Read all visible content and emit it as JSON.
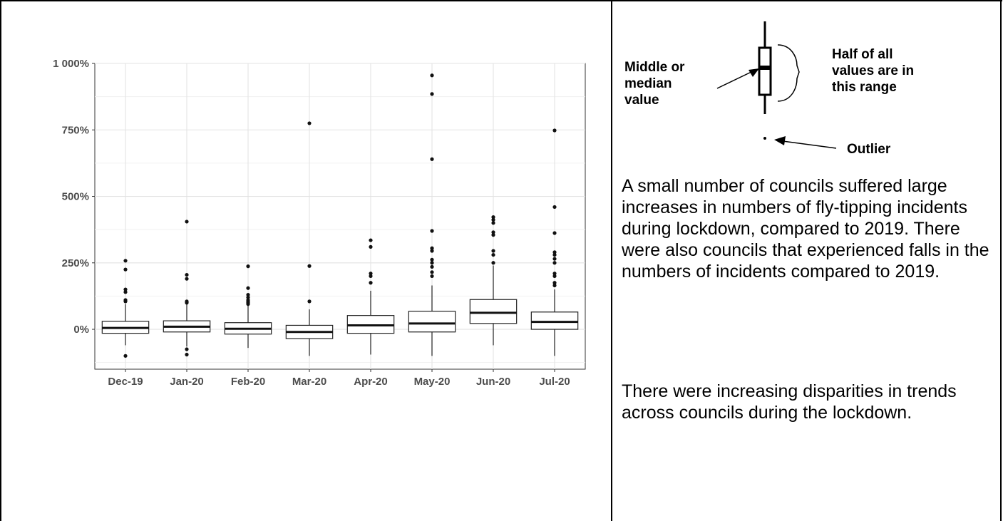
{
  "chart_data": {
    "type": "boxplot",
    "categories": [
      "Dec-19",
      "Jan-20",
      "Feb-20",
      "Mar-20",
      "Apr-20",
      "May-20",
      "Jun-20",
      "Jul-20"
    ],
    "ylim": [
      -150,
      1000
    ],
    "yticks": [
      0,
      250,
      500,
      750,
      1000
    ],
    "ytick_labels": [
      "0%",
      "250%",
      "500%",
      "750%",
      "1 000%"
    ],
    "grid": true,
    "boxes": [
      {
        "lw": -60,
        "q1": -15,
        "median": 5,
        "q3": 30,
        "uw": 95,
        "outliers": [
          -100,
          105,
          110,
          140,
          150,
          225,
          258
        ]
      },
      {
        "lw": -65,
        "q1": -10,
        "median": 10,
        "q3": 32,
        "uw": 95,
        "outliers": [
          -75,
          -95,
          100,
          105,
          190,
          205,
          405
        ]
      },
      {
        "lw": -70,
        "q1": -18,
        "median": 2,
        "q3": 25,
        "uw": 90,
        "outliers": [
          95,
          100,
          105,
          110,
          120,
          130,
          155,
          237
        ]
      },
      {
        "lw": -100,
        "q1": -35,
        "median": -10,
        "q3": 15,
        "uw": 75,
        "outliers": [
          105,
          238,
          775
        ]
      },
      {
        "lw": -95,
        "q1": -15,
        "median": 15,
        "q3": 52,
        "uw": 145,
        "outliers": [
          175,
          200,
          210,
          310,
          335
        ]
      },
      {
        "lw": -100,
        "q1": -10,
        "median": 22,
        "q3": 68,
        "uw": 165,
        "outliers": [
          200,
          215,
          235,
          250,
          262,
          295,
          305,
          370,
          640,
          885,
          955
        ]
      },
      {
        "lw": -60,
        "q1": 22,
        "median": 62,
        "q3": 112,
        "uw": 240,
        "outliers": [
          250,
          280,
          295,
          355,
          365,
          400,
          412,
          422
        ]
      },
      {
        "lw": -100,
        "q1": 0,
        "median": 28,
        "q3": 65,
        "uw": 150,
        "outliers": [
          165,
          175,
          200,
          210,
          250,
          265,
          280,
          290,
          362,
          460,
          748
        ]
      }
    ]
  },
  "legend": {
    "median_label": [
      "Middle or",
      "median",
      "value"
    ],
    "range_label": [
      "Half of all",
      "values are in",
      "this range"
    ],
    "outlier_label": "Outlier"
  },
  "text": {
    "paragraph1": "A small number of councils suffered large increases in numbers of fly-tipping incidents during lockdown, compared to 2019. There were also councils that experienced falls in the numbers of incidents compared to 2019.",
    "paragraph2": "There were increasing disparities in trends across councils during the lockdown."
  }
}
